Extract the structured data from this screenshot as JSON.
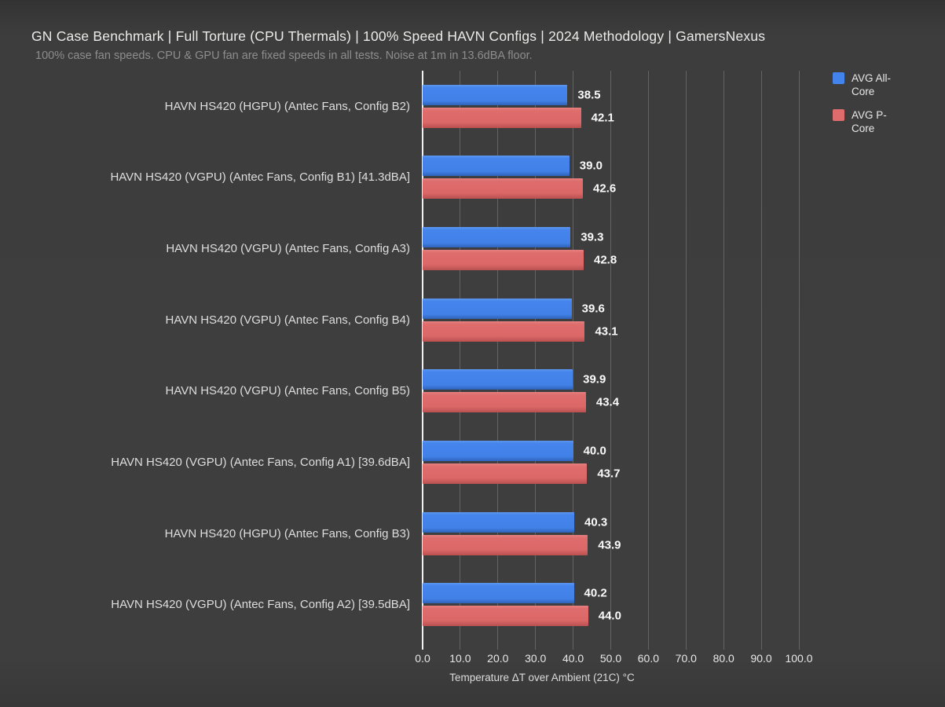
{
  "page": {
    "background_color": "#3e3e3e"
  },
  "chart_data": {
    "type": "bar",
    "orientation": "horizontal",
    "title": "GN Case Benchmark | Full Torture (CPU Thermals) | 100% Speed HAVN Configs | 2024 Methodology | GamersNexus",
    "subtitle": "100% case fan speeds. CPU & GPU fan are fixed speeds in all tests. Noise at 1m in 13.6dBA floor.",
    "categories": [
      "HAVN HS420 (HGPU) (Antec Fans, Config B2)",
      "HAVN HS420 (VGPU) (Antec Fans, Config B1) [41.3dBA]",
      "HAVN HS420 (VGPU) (Antec Fans, Config A3)",
      "HAVN HS420 (VGPU) (Antec Fans, Config B4)",
      "HAVN HS420 (VGPU) (Antec Fans, Config B5)",
      "HAVN HS420 (VGPU) (Antec Fans, Config A1) [39.6dBA]",
      "HAVN HS420 (HGPU) (Antec Fans, Config B3)",
      "HAVN HS420 (VGPU) (Antec Fans, Config A2) [39.5dBA]"
    ],
    "series": [
      {
        "name": "AVG All-Core",
        "color": "#4384ec",
        "values": [
          38.5,
          39.0,
          39.3,
          39.6,
          39.9,
          40.0,
          40.3,
          40.2
        ]
      },
      {
        "name": "AVG P-Core",
        "color": "#df6c6c",
        "values": [
          42.1,
          42.6,
          42.8,
          43.1,
          43.4,
          43.7,
          43.9,
          44.0
        ]
      }
    ],
    "xlabel": "Temperature ΔT over Ambient (21C) °C",
    "ylabel": "",
    "xlim": [
      0,
      100
    ],
    "x_ticks": [
      "0.0",
      "10.0",
      "20.0",
      "30.0",
      "40.0",
      "50.0",
      "60.0",
      "70.0",
      "80.0",
      "90.0",
      "100.0"
    ],
    "grid": "vertical",
    "legend_position": "top-right",
    "value_label_decimals": 1
  },
  "legend": {
    "entries": [
      {
        "label": "AVG All-Core",
        "color": "#4384ec"
      },
      {
        "label": "AVG P-Core",
        "color": "#df6c6c"
      }
    ]
  }
}
